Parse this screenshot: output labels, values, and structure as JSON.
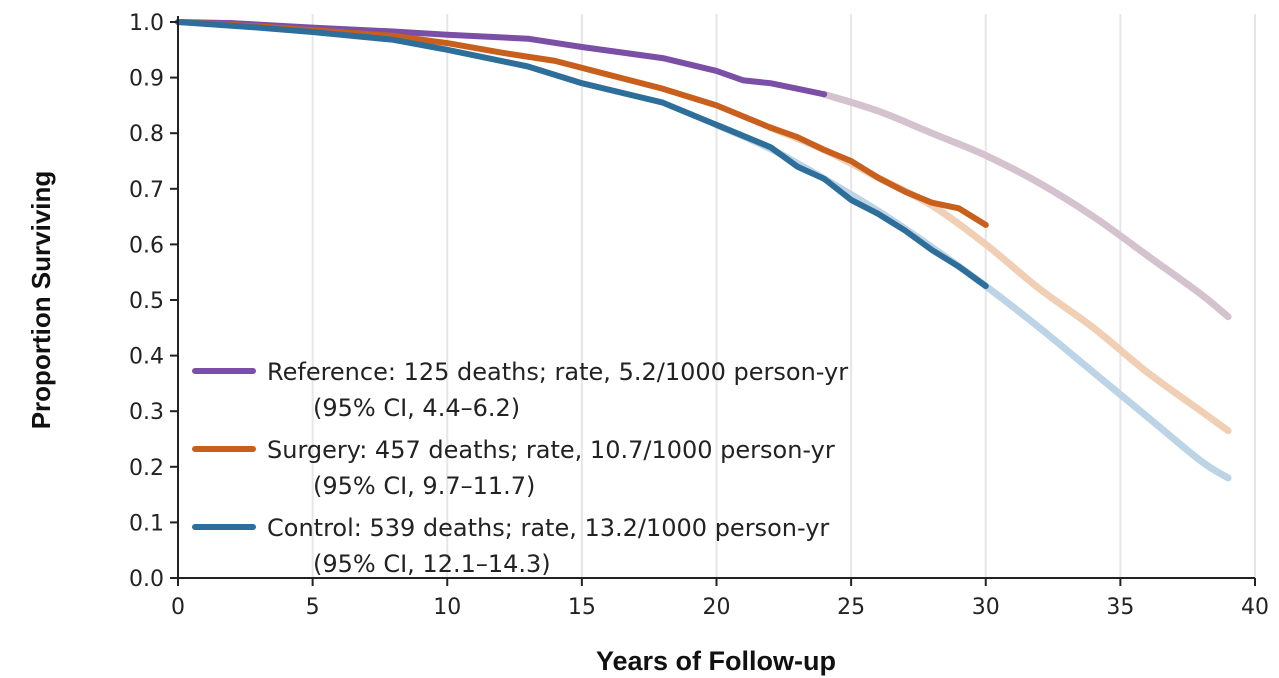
{
  "chart_data": {
    "type": "line",
    "title": "",
    "xlabel": "Years of Follow-up",
    "ylabel": "Proportion Surviving",
    "xlim": [
      0,
      40
    ],
    "ylim": [
      0.0,
      1.0
    ],
    "x_ticks": [
      "0",
      "5",
      "10",
      "15",
      "20",
      "25",
      "30",
      "35",
      "40"
    ],
    "y_ticks": [
      "0.0",
      "0.1",
      "0.2",
      "0.3",
      "0.4",
      "0.5",
      "0.6",
      "0.7",
      "0.8",
      "0.9",
      "1.0"
    ],
    "grid": "vertical",
    "legend_position": "bottom-left",
    "series": [
      {
        "name": "Reference",
        "legend_line1": "Reference: 125 deaths; rate, 5.2/1000 person-yr",
        "legend_line2": "(95% CI, 4.4–6.2)",
        "color": "#7b4fa6",
        "fit_color": "#d4c3cf",
        "observed": {
          "x": [
            0,
            2,
            5,
            8,
            10,
            13,
            15,
            18,
            20,
            21,
            22,
            23,
            24
          ],
          "y": [
            1.0,
            0.998,
            0.99,
            0.983,
            0.977,
            0.97,
            0.955,
            0.935,
            0.912,
            0.895,
            0.89,
            0.88,
            0.87
          ]
        },
        "fitted": {
          "x": [
            24,
            26,
            28,
            30,
            32,
            34,
            36,
            38,
            39
          ],
          "y": [
            0.87,
            0.84,
            0.8,
            0.76,
            0.71,
            0.65,
            0.58,
            0.51,
            0.47
          ]
        }
      },
      {
        "name": "Surgery",
        "legend_line1": "Surgery: 457 deaths; rate, 10.7/1000 person-yr",
        "legend_line2": "(95% CI, 9.7–11.7)",
        "color": "#c85f1c",
        "fit_color": "#f0cfb5",
        "observed": {
          "x": [
            0,
            3,
            5,
            8,
            10,
            12,
            14,
            16,
            18,
            20,
            22,
            23,
            24,
            25,
            26,
            27,
            28,
            29,
            30
          ],
          "y": [
            1.0,
            0.992,
            0.985,
            0.975,
            0.962,
            0.945,
            0.93,
            0.905,
            0.88,
            0.85,
            0.81,
            0.793,
            0.77,
            0.75,
            0.72,
            0.695,
            0.675,
            0.665,
            0.635
          ]
        },
        "fitted": {
          "x": [
            22,
            24,
            26,
            28,
            30,
            32,
            34,
            36,
            38,
            39
          ],
          "y": [
            0.81,
            0.77,
            0.72,
            0.67,
            0.6,
            0.52,
            0.45,
            0.37,
            0.3,
            0.265
          ]
        }
      },
      {
        "name": "Control",
        "legend_line1": "Control: 539 deaths; rate, 13.2/1000 person-yr",
        "legend_line2": "(95% CI, 12.1–14.3)",
        "color": "#2e6e9a",
        "fit_color": "#bdd3e6",
        "observed": {
          "x": [
            0,
            3,
            5,
            8,
            10,
            13,
            15,
            18,
            20,
            22,
            23,
            24,
            25,
            26,
            27,
            28,
            29,
            30
          ],
          "y": [
            1.0,
            0.99,
            0.982,
            0.968,
            0.95,
            0.92,
            0.89,
            0.855,
            0.815,
            0.775,
            0.74,
            0.718,
            0.68,
            0.655,
            0.625,
            0.59,
            0.56,
            0.525
          ]
        },
        "fitted": {
          "x": [
            20,
            22,
            24,
            26,
            28,
            30,
            32,
            34,
            36,
            38,
            39
          ],
          "y": [
            0.815,
            0.772,
            0.718,
            0.66,
            0.595,
            0.525,
            0.45,
            0.37,
            0.29,
            0.21,
            0.18
          ]
        }
      }
    ]
  }
}
